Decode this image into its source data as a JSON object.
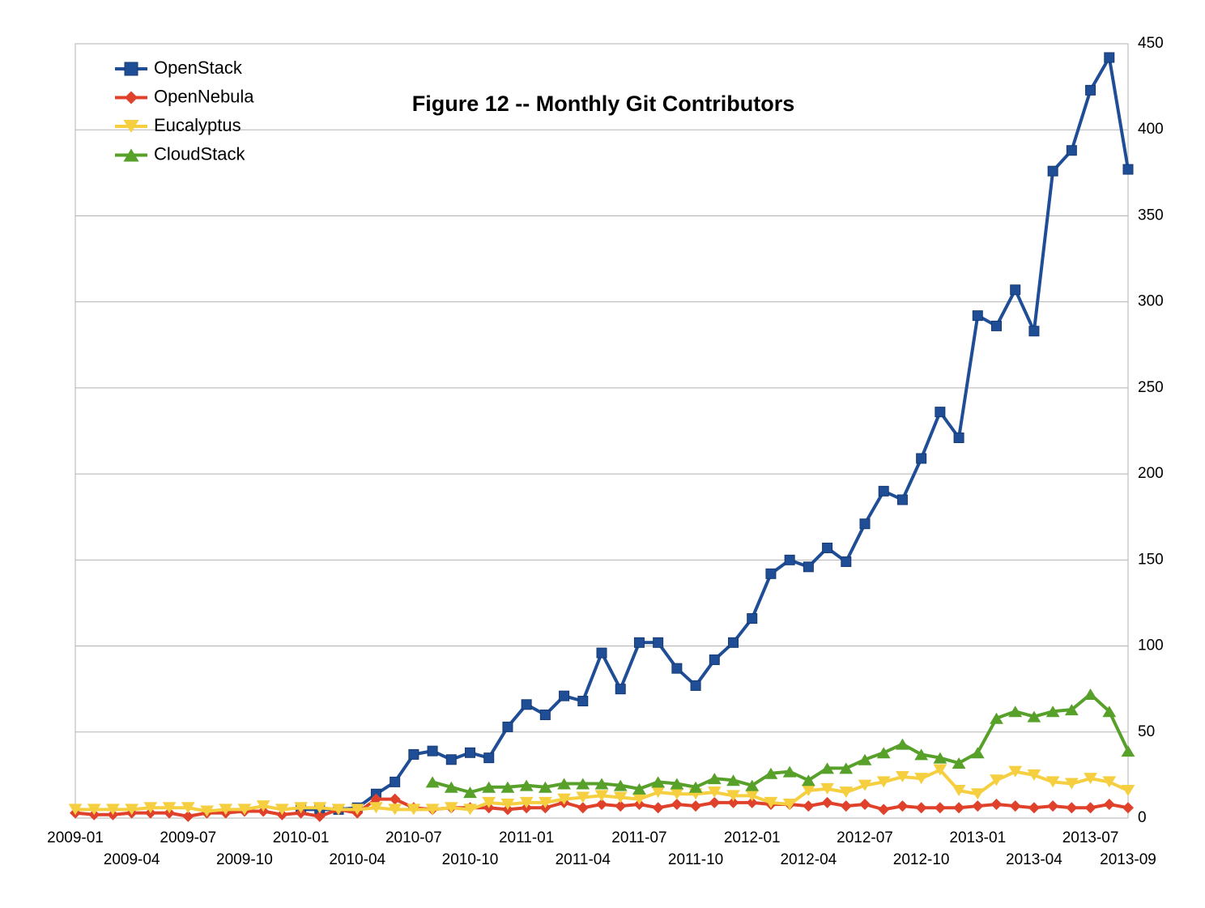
{
  "chart_data": {
    "type": "line",
    "title": "Figure 12 -- Monthly Git Contributors",
    "categories": [
      "2009-01",
      null,
      null,
      "2009-04",
      null,
      null,
      "2009-07",
      null,
      null,
      "2009-10",
      null,
      null,
      "2010-01",
      null,
      null,
      "2010-04",
      null,
      null,
      "2010-07",
      null,
      null,
      "2010-10",
      null,
      null,
      "2011-01",
      null,
      null,
      "2011-04",
      null,
      null,
      "2011-07",
      null,
      null,
      "2011-10",
      null,
      null,
      "2012-01",
      null,
      null,
      "2012-04",
      null,
      null,
      "2012-07",
      null,
      null,
      "2012-10",
      null,
      null,
      "2013-01",
      null,
      null,
      "2013-04",
      null,
      null,
      "2013-07",
      null,
      "2013-09"
    ],
    "series": [
      {
        "name": "OpenStack",
        "color": "#1f4e96",
        "marker": "square",
        "values": [
          null,
          null,
          null,
          null,
          null,
          null,
          null,
          null,
          null,
          null,
          null,
          null,
          5,
          5,
          5,
          6,
          14,
          21,
          37,
          39,
          34,
          38,
          35,
          53,
          66,
          60,
          71,
          68,
          96,
          75,
          102,
          102,
          87,
          77,
          92,
          102,
          116,
          142,
          150,
          146,
          157,
          149,
          171,
          190,
          185,
          209,
          236,
          221,
          292,
          286,
          307,
          283,
          376,
          388,
          423,
          442,
          377
        ]
      },
      {
        "name": "OpenNebula",
        "color": "#e0412b",
        "marker": "diamond",
        "values": [
          3,
          2,
          2,
          3,
          3,
          3,
          1,
          3,
          3,
          4,
          4,
          2,
          3,
          1,
          5,
          3,
          11,
          11,
          6,
          5,
          6,
          6,
          6,
          5,
          6,
          6,
          9,
          6,
          8,
          7,
          8,
          6,
          8,
          7,
          9,
          9,
          9,
          8,
          8,
          7,
          9,
          7,
          8,
          5,
          7,
          6,
          6,
          6,
          7,
          8,
          7,
          6,
          7,
          6,
          6,
          8,
          6
        ]
      },
      {
        "name": "Eucalyptus",
        "color": "#f5cf3f",
        "marker": "triangle-down",
        "values": [
          5,
          5,
          5,
          5,
          6,
          6,
          6,
          4,
          5,
          5,
          7,
          5,
          6,
          6,
          5,
          5,
          6,
          5,
          5,
          5,
          6,
          5,
          9,
          8,
          9,
          9,
          11,
          12,
          13,
          12,
          11,
          15,
          14,
          14,
          15,
          13,
          13,
          9,
          8,
          16,
          17,
          15,
          19,
          21,
          24,
          23,
          28,
          16,
          14,
          22,
          27,
          25,
          21,
          20,
          23,
          21,
          16
        ]
      },
      {
        "name": "CloudStack",
        "color": "#57a02a",
        "marker": "triangle-up",
        "values": [
          null,
          null,
          null,
          null,
          null,
          null,
          null,
          null,
          null,
          null,
          null,
          null,
          null,
          null,
          null,
          null,
          null,
          null,
          null,
          21,
          18,
          15,
          18,
          18,
          19,
          18,
          20,
          20,
          20,
          19,
          17,
          21,
          20,
          18,
          23,
          22,
          19,
          26,
          27,
          22,
          29,
          29,
          34,
          38,
          43,
          37,
          35,
          32,
          38,
          58,
          62,
          59,
          62,
          63,
          72,
          62,
          39
        ]
      }
    ],
    "ylim": [
      0,
      450
    ],
    "yticks": [
      0,
      50,
      100,
      150,
      200,
      250,
      300,
      350,
      400,
      450
    ],
    "grid": true,
    "y_axis_side": "right",
    "legend": "upper left"
  }
}
